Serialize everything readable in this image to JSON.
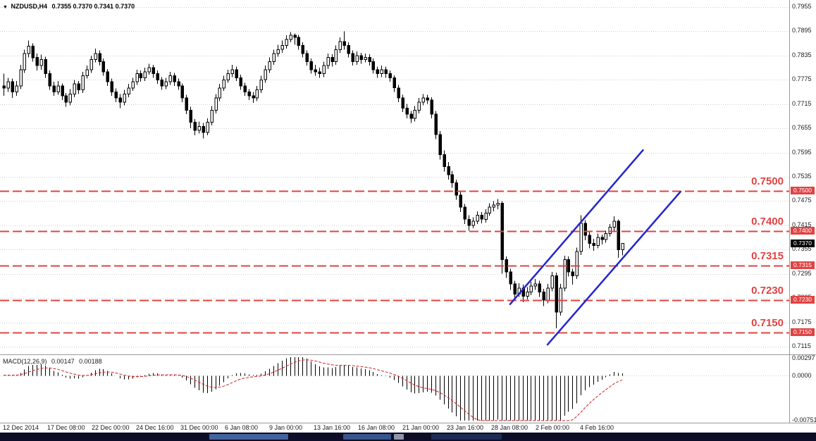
{
  "window": {
    "symbol_timeframe": "NZDUSD,H4",
    "ohlc": "0.7355 0.7370 0.7341 0.7370"
  },
  "indicator_panel": {
    "name": "MACD(12,26,9)",
    "value": "0.00147",
    "signal": "0.00188"
  },
  "colors": {
    "background": "#ffffff",
    "grid": "#cfcfcf",
    "candle": "#000000",
    "level": "#e04343",
    "trend": "#2424d0",
    "signal": "#cc2222",
    "current_tag_bg": "#000000",
    "taskbar_bg": "#0d0d28"
  },
  "chart_data": {
    "type": "candlestick",
    "symbol": "NZDUSD",
    "timeframe": "H4",
    "ylim": [
      0.7115,
      0.7955
    ],
    "grid": true,
    "price_axis": {
      "ticks": [
        "0.7955",
        "0.7895",
        "0.7835",
        "0.7775",
        "0.7715",
        "0.7655",
        "0.7595",
        "0.7535",
        "0.7475",
        "0.7415",
        "0.7355",
        "0.7295",
        "0.7235",
        "0.7175",
        "0.7115"
      ]
    },
    "x_labels": [
      "12 Dec 2014",
      "17 Dec 08:00",
      "22 Dec 00:00",
      "24 Dec 16:00",
      "31 Dec 00:00",
      "6 Jan 08:00",
      "9 Jan 00:00",
      "13 Jan 16:00",
      "16 Jan 08:00",
      "21 Jan 00:00",
      "23 Jan 16:00",
      "28 Jan 08:00",
      "2 Feb 00:00",
      "4 Feb 16:00"
    ],
    "current": {
      "open": 0.7355,
      "high": 0.737,
      "low": 0.7341,
      "close": 0.737,
      "label": "0.7370"
    },
    "levels": [
      {
        "price": 0.75,
        "label": "0.7500"
      },
      {
        "price": 0.74,
        "label": "0.7400"
      },
      {
        "price": 0.7315,
        "label": "0.7315"
      },
      {
        "price": 0.723,
        "label": "0.7230"
      },
      {
        "price": 0.715,
        "label": "0.7150"
      }
    ],
    "trendlines": [
      {
        "from_bar": 122,
        "from_price": 0.722,
        "to_bar": 154,
        "to_price": 0.7601
      },
      {
        "from_bar": 131,
        "from_price": 0.712,
        "to_bar": 163,
        "to_price": 0.7498
      }
    ],
    "indicator": {
      "type": "MACD",
      "fast": 12,
      "slow": 26,
      "signal": 9,
      "value": 0.00147,
      "signal_value": 0.00188
    },
    "macd_axis": {
      "ticks": [
        "0.00297",
        "0.0000",
        "-0.00751"
      ],
      "values": [
        0.00297,
        0,
        -0.00751
      ]
    },
    "candles": [
      [
        0.776,
        0.779,
        0.7735,
        0.7755
      ],
      [
        0.7755,
        0.778,
        0.7745,
        0.777
      ],
      [
        0.777,
        0.7778,
        0.773,
        0.7745
      ],
      [
        0.7745,
        0.7772,
        0.7735,
        0.776
      ],
      [
        0.776,
        0.7812,
        0.7752,
        0.78
      ],
      [
        0.78,
        0.785,
        0.7792,
        0.784
      ],
      [
        0.784,
        0.7872,
        0.783,
        0.7858
      ],
      [
        0.7858,
        0.7865,
        0.782,
        0.783
      ],
      [
        0.783,
        0.784,
        0.7798,
        0.781
      ],
      [
        0.781,
        0.7837,
        0.78,
        0.7825
      ],
      [
        0.7825,
        0.7832,
        0.778,
        0.779
      ],
      [
        0.779,
        0.7798,
        0.775,
        0.776
      ],
      [
        0.776,
        0.777,
        0.7735,
        0.7745
      ],
      [
        0.7745,
        0.7772,
        0.7738,
        0.776
      ],
      [
        0.776,
        0.7766,
        0.7725,
        0.7735
      ],
      [
        0.7735,
        0.7742,
        0.7708,
        0.772
      ],
      [
        0.772,
        0.7752,
        0.7712,
        0.774
      ],
      [
        0.774,
        0.7775,
        0.7732,
        0.7765
      ],
      [
        0.7765,
        0.7772,
        0.774,
        0.775
      ],
      [
        0.775,
        0.7795,
        0.7742,
        0.7785
      ],
      [
        0.7785,
        0.781,
        0.7778,
        0.78
      ],
      [
        0.78,
        0.7835,
        0.7792,
        0.7825
      ],
      [
        0.7825,
        0.7852,
        0.7818,
        0.784
      ],
      [
        0.784,
        0.7848,
        0.781,
        0.782
      ],
      [
        0.782,
        0.7828,
        0.7785,
        0.7795
      ],
      [
        0.7795,
        0.7802,
        0.776,
        0.777
      ],
      [
        0.777,
        0.7778,
        0.7735,
        0.7745
      ],
      [
        0.7745,
        0.7754,
        0.772,
        0.773
      ],
      [
        0.773,
        0.774,
        0.7705,
        0.772
      ],
      [
        0.772,
        0.775,
        0.7712,
        0.774
      ],
      [
        0.774,
        0.7765,
        0.7732,
        0.7755
      ],
      [
        0.7755,
        0.778,
        0.7748,
        0.777
      ],
      [
        0.777,
        0.78,
        0.7762,
        0.779
      ],
      [
        0.779,
        0.7798,
        0.777,
        0.778
      ],
      [
        0.778,
        0.7805,
        0.7772,
        0.7795
      ],
      [
        0.7795,
        0.7815,
        0.7788,
        0.7805
      ],
      [
        0.7805,
        0.7812,
        0.778,
        0.779
      ],
      [
        0.779,
        0.7798,
        0.7765,
        0.7775
      ],
      [
        0.7775,
        0.7782,
        0.775,
        0.776
      ],
      [
        0.776,
        0.778,
        0.7752,
        0.777
      ],
      [
        0.777,
        0.7795,
        0.7762,
        0.7785
      ],
      [
        0.7785,
        0.7792,
        0.776,
        0.777
      ],
      [
        0.777,
        0.7778,
        0.775,
        0.776
      ],
      [
        0.776,
        0.7766,
        0.772,
        0.773
      ],
      [
        0.773,
        0.7738,
        0.769,
        0.77
      ],
      [
        0.77,
        0.7708,
        0.7655,
        0.767
      ],
      [
        0.767,
        0.7678,
        0.7638,
        0.765
      ],
      [
        0.765,
        0.7672,
        0.7642,
        0.766
      ],
      [
        0.766,
        0.7668,
        0.763,
        0.7645
      ],
      [
        0.7645,
        0.768,
        0.7638,
        0.767
      ],
      [
        0.767,
        0.771,
        0.7662,
        0.77
      ],
      [
        0.77,
        0.774,
        0.7692,
        0.773
      ],
      [
        0.773,
        0.7765,
        0.7722,
        0.7755
      ],
      [
        0.7755,
        0.7785,
        0.7748,
        0.7775
      ],
      [
        0.7775,
        0.78,
        0.7768,
        0.779
      ],
      [
        0.779,
        0.7812,
        0.7782,
        0.78
      ],
      [
        0.78,
        0.7808,
        0.7772,
        0.778
      ],
      [
        0.778,
        0.7788,
        0.775,
        0.776
      ],
      [
        0.776,
        0.7768,
        0.7735,
        0.7745
      ],
      [
        0.7745,
        0.7752,
        0.7725,
        0.7735
      ],
      [
        0.7735,
        0.7745,
        0.7718,
        0.773
      ],
      [
        0.773,
        0.776,
        0.7722,
        0.775
      ],
      [
        0.775,
        0.7785,
        0.7742,
        0.7775
      ],
      [
        0.7775,
        0.781,
        0.7768,
        0.78
      ],
      [
        0.78,
        0.783,
        0.7792,
        0.782
      ],
      [
        0.782,
        0.785,
        0.7812,
        0.784
      ],
      [
        0.784,
        0.7862,
        0.7832,
        0.785
      ],
      [
        0.785,
        0.7872,
        0.7842,
        0.786
      ],
      [
        0.786,
        0.7885,
        0.7852,
        0.7875
      ],
      [
        0.7875,
        0.7893,
        0.7868,
        0.7885
      ],
      [
        0.7885,
        0.789,
        0.7862,
        0.788
      ],
      [
        0.788,
        0.7886,
        0.785,
        0.786
      ],
      [
        0.786,
        0.7868,
        0.783,
        0.784
      ],
      [
        0.784,
        0.7848,
        0.781,
        0.782
      ],
      [
        0.782,
        0.7828,
        0.779,
        0.78
      ],
      [
        0.78,
        0.7812,
        0.7785,
        0.7795
      ],
      [
        0.7795,
        0.7805,
        0.778,
        0.779
      ],
      [
        0.779,
        0.782,
        0.7782,
        0.781
      ],
      [
        0.781,
        0.784,
        0.7802,
        0.783
      ],
      [
        0.783,
        0.7838,
        0.7808,
        0.782
      ],
      [
        0.782,
        0.786,
        0.7812,
        0.785
      ],
      [
        0.785,
        0.788,
        0.7842,
        0.787
      ],
      [
        0.787,
        0.7895,
        0.785,
        0.786
      ],
      [
        0.786,
        0.7868,
        0.783,
        0.784
      ],
      [
        0.784,
        0.7848,
        0.781,
        0.782
      ],
      [
        0.782,
        0.7845,
        0.7812,
        0.7835
      ],
      [
        0.7835,
        0.7842,
        0.7815,
        0.7825
      ],
      [
        0.7825,
        0.784,
        0.7818,
        0.783
      ],
      [
        0.783,
        0.7838,
        0.781,
        0.782
      ],
      [
        0.782,
        0.7828,
        0.779,
        0.78
      ],
      [
        0.78,
        0.7808,
        0.778,
        0.779
      ],
      [
        0.779,
        0.781,
        0.7782,
        0.78
      ],
      [
        0.78,
        0.7808,
        0.778,
        0.779
      ],
      [
        0.779,
        0.7798,
        0.777,
        0.778
      ],
      [
        0.778,
        0.7786,
        0.7745,
        0.7755
      ],
      [
        0.7755,
        0.7762,
        0.772,
        0.773
      ],
      [
        0.773,
        0.7738,
        0.7695,
        0.7705
      ],
      [
        0.7705,
        0.7715,
        0.768,
        0.769
      ],
      [
        0.769,
        0.7698,
        0.7668,
        0.768
      ],
      [
        0.768,
        0.771,
        0.7672,
        0.77
      ],
      [
        0.77,
        0.773,
        0.7692,
        0.772
      ],
      [
        0.772,
        0.774,
        0.7712,
        0.773
      ],
      [
        0.773,
        0.7738,
        0.7715,
        0.7725
      ],
      [
        0.7725,
        0.7732,
        0.768,
        0.769
      ],
      [
        0.769,
        0.7698,
        0.7628,
        0.764
      ],
      [
        0.764,
        0.7648,
        0.7578,
        0.759
      ],
      [
        0.759,
        0.76,
        0.7548,
        0.756
      ],
      [
        0.756,
        0.7572,
        0.7528,
        0.754
      ],
      [
        0.754,
        0.755,
        0.7508,
        0.752
      ],
      [
        0.752,
        0.7528,
        0.7478,
        0.749
      ],
      [
        0.749,
        0.7498,
        0.7448,
        0.746
      ],
      [
        0.746,
        0.7468,
        0.7418,
        0.743
      ],
      [
        0.743,
        0.744,
        0.7402,
        0.7415
      ],
      [
        0.7415,
        0.7435,
        0.7408,
        0.7425
      ],
      [
        0.7425,
        0.745,
        0.7418,
        0.744
      ],
      [
        0.744,
        0.7448,
        0.742,
        0.743
      ],
      [
        0.743,
        0.7455,
        0.7422,
        0.7445
      ],
      [
        0.7445,
        0.747,
        0.7438,
        0.746
      ],
      [
        0.746,
        0.7475,
        0.745,
        0.7465
      ],
      [
        0.7465,
        0.748,
        0.7455,
        0.747
      ],
      [
        0.747,
        0.7475,
        0.7295,
        0.733
      ],
      [
        0.733,
        0.7338,
        0.7285,
        0.73
      ],
      [
        0.73,
        0.7308,
        0.7255,
        0.727
      ],
      [
        0.727,
        0.7278,
        0.7228,
        0.7245
      ],
      [
        0.7245,
        0.7272,
        0.7238,
        0.726
      ],
      [
        0.726,
        0.7268,
        0.7225,
        0.724
      ],
      [
        0.724,
        0.7262,
        0.7232,
        0.725
      ],
      [
        0.725,
        0.7275,
        0.7242,
        0.7265
      ],
      [
        0.7265,
        0.7282,
        0.7255,
        0.727
      ],
      [
        0.727,
        0.7278,
        0.7238,
        0.725
      ],
      [
        0.725,
        0.7258,
        0.7215,
        0.723
      ],
      [
        0.723,
        0.727,
        0.7222,
        0.726
      ],
      [
        0.726,
        0.73,
        0.7252,
        0.729
      ],
      [
        0.729,
        0.7298,
        0.716,
        0.72
      ],
      [
        0.72,
        0.727,
        0.7192,
        0.726
      ],
      [
        0.726,
        0.734,
        0.7252,
        0.733
      ],
      [
        0.733,
        0.7338,
        0.7288,
        0.73
      ],
      [
        0.73,
        0.7308,
        0.7268,
        0.729
      ],
      [
        0.729,
        0.736,
        0.7282,
        0.735
      ],
      [
        0.735,
        0.744,
        0.7342,
        0.742
      ],
      [
        0.742,
        0.7428,
        0.7378,
        0.739
      ],
      [
        0.739,
        0.7398,
        0.7358,
        0.737
      ],
      [
        0.737,
        0.7382,
        0.7352,
        0.7365
      ],
      [
        0.7365,
        0.7395,
        0.7358,
        0.7385
      ],
      [
        0.7385,
        0.7392,
        0.7368,
        0.738
      ],
      [
        0.738,
        0.7402,
        0.7372,
        0.7395
      ],
      [
        0.7395,
        0.7418,
        0.7388,
        0.741
      ],
      [
        0.741,
        0.7437,
        0.7402,
        0.7425
      ],
      [
        0.7425,
        0.743,
        0.7335,
        0.7355
      ],
      [
        0.7355,
        0.737,
        0.7341,
        0.737
      ]
    ]
  }
}
